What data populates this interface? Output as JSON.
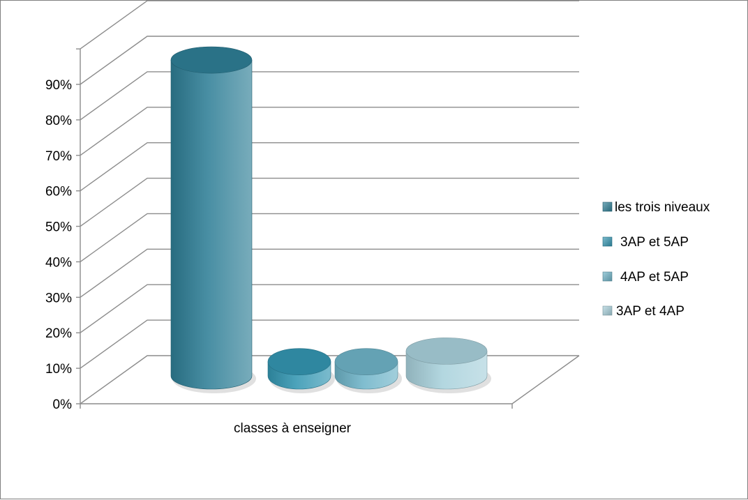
{
  "chart_data": {
    "type": "bar",
    "style": "3d-cylinder",
    "categories": [
      "classes à enseigner"
    ],
    "series": [
      {
        "name": "les trois niveaux",
        "values": [
          89
        ],
        "color": "#2f7f96"
      },
      {
        "name": "3AP et 5AP",
        "values": [
          4
        ],
        "color": "#3496b2"
      },
      {
        "name": "4AP et 5AP",
        "values": [
          4
        ],
        "color": "#6fb4c8"
      },
      {
        "name": "3AP et 4AP",
        "values": [
          7
        ],
        "color": "#a9d1dc"
      }
    ],
    "yticks": [
      "0%",
      "10%",
      "20%",
      "30%",
      "40%",
      "50%",
      "60%",
      "70%",
      "80%",
      "90%"
    ],
    "ylim": [
      0,
      100
    ],
    "grid": true,
    "legend_position": "right"
  }
}
